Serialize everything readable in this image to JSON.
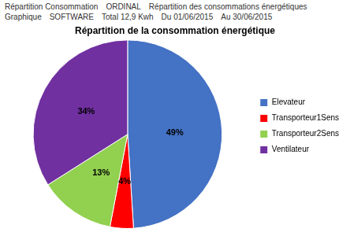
{
  "chart_data": {
    "type": "pie",
    "title": "Répartition de la consommation énergétique",
    "categories": [
      "Elevateur",
      "Transporteur1Sens",
      "Transporteur2Sens",
      "Ventilateur"
    ],
    "values": [
      49,
      4,
      13,
      34
    ],
    "value_labels": [
      "49%",
      "4%",
      "13%",
      "34%"
    ],
    "colors": [
      "#4472C4",
      "#FF0000",
      "#92D050",
      "#7030A0"
    ],
    "data_labels": true,
    "legend": "right",
    "annotations": [
      "Répartition Consommation",
      "ORDINAL",
      "Répartition des consommations énergétiques",
      "Graphique",
      "SOFTWARE",
      "Total 12,9 Kwh",
      "Du 01/06/2015",
      "Au 30/06/2015"
    ]
  }
}
